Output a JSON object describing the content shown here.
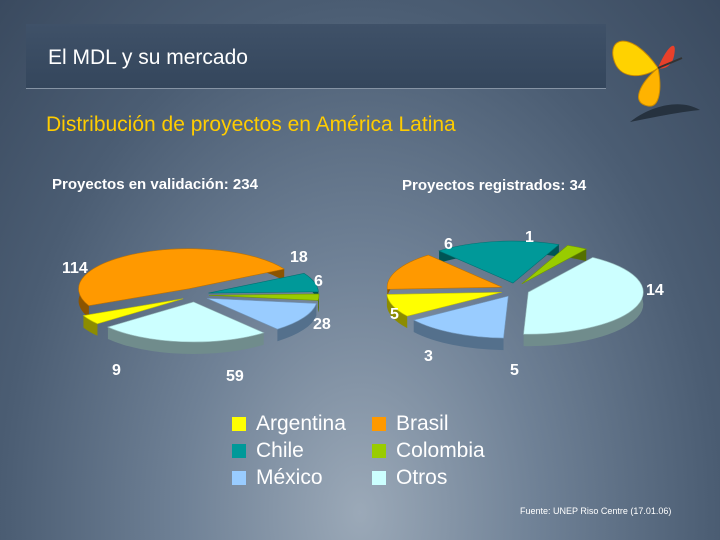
{
  "slide": {
    "title": "El MDL y su mercado",
    "subtitle": "Distribución de proyectos en América Latina",
    "source": "Fuente: UNEP Riso Centre (17.01.06)"
  },
  "colors": {
    "Argentina": "#ffff00",
    "Brasil": "#ff9900",
    "Chile": "#009999",
    "Colombia": "#99cc00",
    "México": "#99ccff",
    "Otros": "#ccffff",
    "title_accent": "#ffcc00"
  },
  "chart_data": [
    {
      "type": "pie",
      "title": "Proyectos en validación: 234",
      "categories": [
        "Brasil",
        "Chile",
        "Colombia",
        "México",
        "Otros",
        "Argentina"
      ],
      "values": [
        114,
        18,
        6,
        28,
        59,
        9
      ],
      "value_labels": [
        "114",
        "18",
        "6",
        "28",
        "59",
        "9"
      ]
    },
    {
      "type": "pie",
      "title": "Proyectos registrados: 34",
      "categories": [
        "Chile",
        "Colombia",
        "Otros",
        "México",
        "Argentina",
        "Brasil"
      ],
      "values": [
        6,
        1,
        14,
        5,
        3,
        5
      ],
      "value_labels": [
        "6",
        "1",
        "14",
        "5",
        "3",
        "5"
      ]
    }
  ],
  "legend": [
    {
      "label": "Argentina",
      "color": "#ffff00"
    },
    {
      "label": "Brasil",
      "color": "#ff9900"
    },
    {
      "label": "Chile",
      "color": "#009999"
    },
    {
      "label": "Colombia",
      "color": "#99cc00"
    },
    {
      "label": "México",
      "color": "#99ccff"
    },
    {
      "label": "Otros",
      "color": "#ccffff"
    }
  ]
}
